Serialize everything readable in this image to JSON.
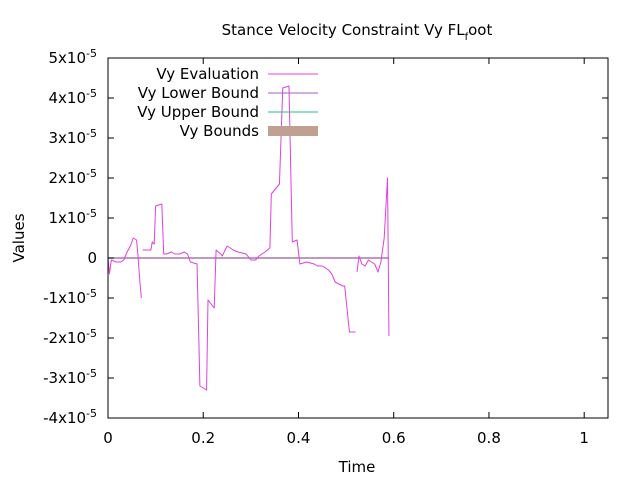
{
  "chart_data": {
    "type": "line",
    "title": {
      "main": "Stance Velocity Constraint Vy FL",
      "subscript": "f",
      "tail": "oot"
    },
    "xlabel": "Time",
    "ylabel": "Values",
    "xlim": [
      0,
      1.05
    ],
    "ylim": [
      -4e-05,
      5e-05
    ],
    "x_ticks": [
      {
        "value": 0,
        "label": "0"
      },
      {
        "value": 0.2,
        "label": "0.2"
      },
      {
        "value": 0.4,
        "label": "0.4"
      },
      {
        "value": 0.6,
        "label": "0.6"
      },
      {
        "value": 0.8,
        "label": "0.8"
      },
      {
        "value": 1.0,
        "label": "1"
      }
    ],
    "y_ticks": [
      {
        "value": 5e-05,
        "mantissa": "5x10",
        "exp": "-5"
      },
      {
        "value": 4e-05,
        "mantissa": "4x10",
        "exp": "-5"
      },
      {
        "value": 3e-05,
        "mantissa": "3x10",
        "exp": "-5"
      },
      {
        "value": 2e-05,
        "mantissa": "2x10",
        "exp": "-5"
      },
      {
        "value": 1e-05,
        "mantissa": "1x10",
        "exp": "-5"
      },
      {
        "value": 0,
        "mantissa": "0",
        "exp": ""
      },
      {
        "value": -1e-05,
        "mantissa": "-1x10",
        "exp": "-5"
      },
      {
        "value": -2e-05,
        "mantissa": "-2x10",
        "exp": "-5"
      },
      {
        "value": -3e-05,
        "mantissa": "-3x10",
        "exp": "-5"
      },
      {
        "value": -4e-05,
        "mantissa": "-4x10",
        "exp": "-5"
      }
    ],
    "grid": false,
    "legend_position": "top-left",
    "series": [
      {
        "name": "Vy Evaluation",
        "color": "#e040e0",
        "style": "line",
        "segments": [
          [
            [
              0.0,
              0.0
            ],
            [
              0.003,
              -4e-06
            ],
            [
              0.007,
              -5e-07
            ],
            [
              0.017,
              -1e-06
            ],
            [
              0.027,
              -1e-06
            ],
            [
              0.033,
              -5e-07
            ],
            [
              0.04,
              1.5e-06
            ],
            [
              0.047,
              3e-06
            ],
            [
              0.053,
              5e-06
            ],
            [
              0.06,
              4.5e-06
            ],
            [
              0.063,
              5e-07
            ],
            [
              0.067,
              -6e-06
            ],
            [
              0.07,
              -1e-05
            ]
          ],
          [
            [
              0.073,
              2e-06
            ],
            [
              0.09,
              2e-06
            ],
            [
              0.093,
              4e-06
            ],
            [
              0.097,
              3.5e-06
            ],
            [
              0.1,
              1.3e-05
            ],
            [
              0.113,
              1.35e-05
            ],
            [
              0.117,
              1e-06
            ],
            [
              0.123,
              1e-06
            ],
            [
              0.133,
              1.5e-06
            ],
            [
              0.14,
              1e-06
            ],
            [
              0.15,
              1e-06
            ],
            [
              0.16,
              1.5e-06
            ],
            [
              0.167,
              1e-06
            ],
            [
              0.173,
              -1e-06
            ],
            [
              0.187,
              -1.5e-06
            ],
            [
              0.193,
              -3.2e-05
            ],
            [
              0.2,
              -3.25e-05
            ],
            [
              0.207,
              -3.3e-05
            ],
            [
              0.21,
              -1.05e-05
            ],
            [
              0.223,
              -1.25e-05
            ],
            [
              0.227,
              2e-06
            ],
            [
              0.237,
              1e-06
            ],
            [
              0.24,
              5e-07
            ],
            [
              0.25,
              3e-06
            ],
            [
              0.263,
              2e-06
            ],
            [
              0.273,
              1.5e-06
            ],
            [
              0.29,
              1e-06
            ],
            [
              0.3,
              -5e-07
            ],
            [
              0.31,
              -5e-07
            ],
            [
              0.317,
              5e-07
            ],
            [
              0.323,
              1e-06
            ],
            [
              0.33,
              1.5e-06
            ],
            [
              0.34,
              2.5e-06
            ],
            [
              0.343,
              1.6e-05
            ],
            [
              0.36,
              1.85e-05
            ],
            [
              0.367,
              4.25e-05
            ],
            [
              0.38,
              4.3e-05
            ],
            [
              0.387,
              4e-06
            ],
            [
              0.397,
              4.5e-06
            ],
            [
              0.403,
              -1.5e-06
            ],
            [
              0.417,
              -1e-06
            ],
            [
              0.433,
              -1.5e-06
            ],
            [
              0.44,
              -2e-06
            ],
            [
              0.45,
              -2e-06
            ],
            [
              0.457,
              -2.5e-06
            ],
            [
              0.463,
              -3e-06
            ],
            [
              0.47,
              -4e-06
            ],
            [
              0.477,
              -6e-06
            ],
            [
              0.493,
              -7e-06
            ],
            [
              0.497,
              -7e-06
            ],
            [
              0.507,
              -1.85e-05
            ],
            [
              0.52,
              -1.85e-05
            ]
          ],
          [
            [
              0.523,
              -3.5e-06
            ],
            [
              0.527,
              5e-07
            ],
            [
              0.533,
              -1.5e-06
            ],
            [
              0.54,
              -2e-06
            ],
            [
              0.547,
              -5e-07
            ],
            [
              0.553,
              -1e-06
            ],
            [
              0.56,
              -1.5e-06
            ],
            [
              0.567,
              -3.5e-06
            ],
            [
              0.573,
              -1e-06
            ],
            [
              0.58,
              5e-06
            ],
            [
              0.587,
              2e-05
            ],
            [
              0.59,
              -1.95e-05
            ]
          ]
        ]
      },
      {
        "name": "Vy Lower Bound",
        "color": "#a060c0",
        "style": "line",
        "segments": [
          [
            [
              0.0,
              0.0
            ],
            [
              0.59,
              0.0
            ]
          ]
        ]
      },
      {
        "name": "Vy Upper Bound",
        "color": "#20c080",
        "style": "line",
        "segments": [
          [
            [
              0.0,
              0.0
            ],
            [
              0.59,
              0.0
            ]
          ]
        ]
      },
      {
        "name": "Vy Bounds",
        "color": "#c0a090",
        "style": "band",
        "segments": [
          [
            [
              0.0,
              0.0
            ],
            [
              0.59,
              0.0
            ]
          ]
        ]
      }
    ]
  }
}
